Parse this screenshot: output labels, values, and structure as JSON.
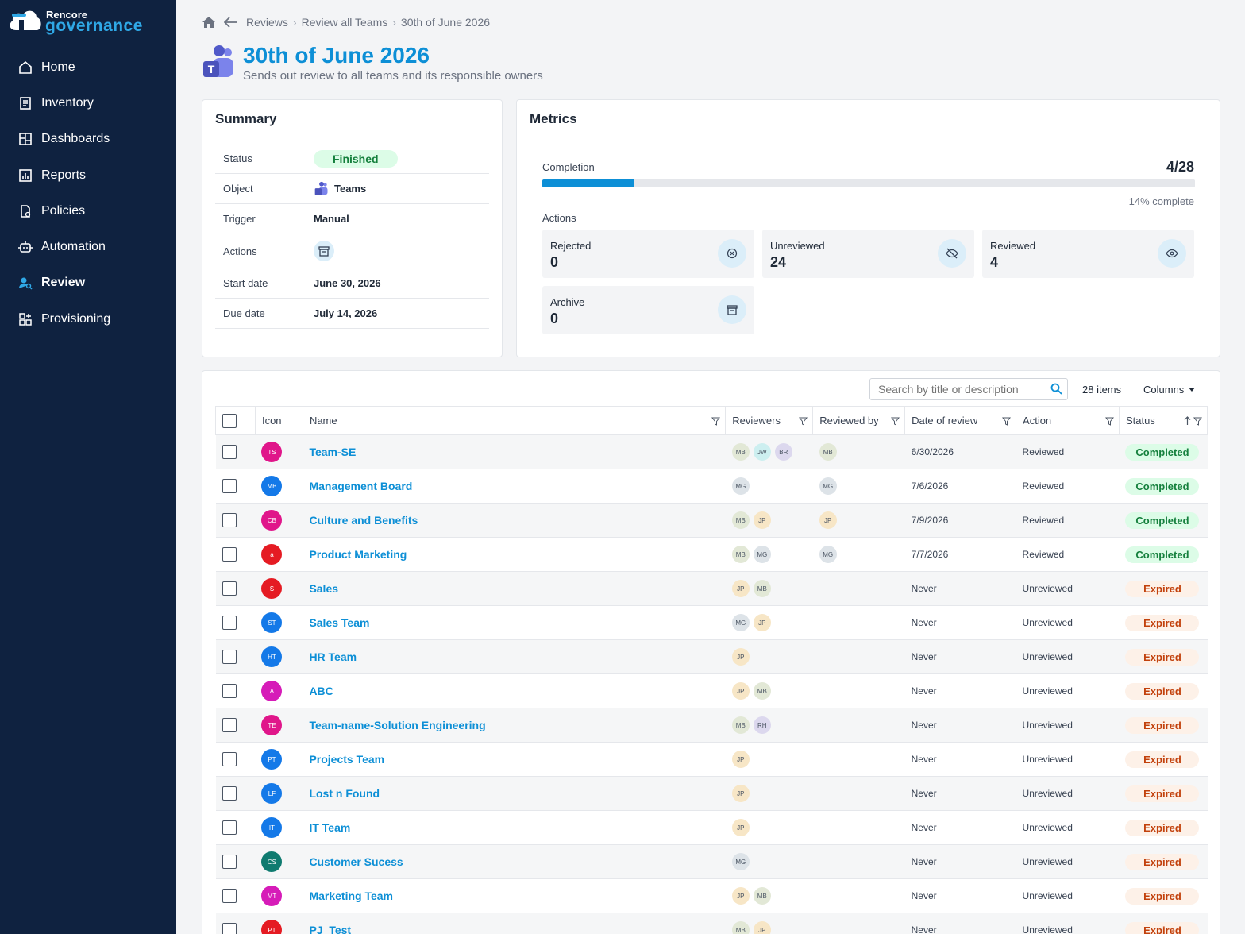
{
  "brand": {
    "small": "Rencore",
    "big": "governance"
  },
  "nav": [
    {
      "label": "Home",
      "icon": "home-icon"
    },
    {
      "label": "Inventory",
      "icon": "inventory-icon"
    },
    {
      "label": "Dashboards",
      "icon": "dashboards-icon"
    },
    {
      "label": "Reports",
      "icon": "reports-icon"
    },
    {
      "label": "Policies",
      "icon": "policies-icon"
    },
    {
      "label": "Automation",
      "icon": "automation-icon"
    },
    {
      "label": "Review",
      "icon": "review-icon",
      "active": true
    },
    {
      "label": "Provisioning",
      "icon": "provisioning-icon"
    }
  ],
  "breadcrumb": [
    "Reviews",
    "Review all Teams",
    "30th of June 2026"
  ],
  "header": {
    "title": "30th of June 2026",
    "subtitle": "Sends out review to all teams and its responsible owners"
  },
  "summary": {
    "title": "Summary",
    "status_label": "Status",
    "status_value": "Finished",
    "object_label": "Object",
    "object_value": "Teams",
    "trigger_label": "Trigger",
    "trigger_value": "Manual",
    "actions_label": "Actions",
    "start_label": "Start date",
    "start_value": "June 30, 2026",
    "due_label": "Due date",
    "due_value": "July 14, 2026"
  },
  "metrics": {
    "title": "Metrics",
    "completion_label": "Completion",
    "completion_value": "4/28",
    "completion_fraction": 0.14,
    "completion_pct": "14% complete",
    "actions_label": "Actions",
    "tiles": [
      {
        "label": "Rejected",
        "value": "0",
        "icon": "rejected-icon"
      },
      {
        "label": "Unreviewed",
        "value": "24",
        "icon": "eye-off-icon"
      },
      {
        "label": "Reviewed",
        "value": "4",
        "icon": "eye-icon"
      },
      {
        "label": "Archive",
        "value": "0",
        "icon": "archive-icon"
      }
    ]
  },
  "table": {
    "search_placeholder": "Search by title or description",
    "items_count": "28 items",
    "columns_label": "Columns",
    "headers": {
      "icon": "Icon",
      "name": "Name",
      "reviewers": "Reviewers",
      "reviewed_by": "Reviewed by",
      "date": "Date of review",
      "action": "Action",
      "status": "Status"
    },
    "rows": [
      {
        "initials": "TS",
        "color": "#e0168a",
        "name": "Team-SE",
        "reviewers": [
          "MB",
          "JW",
          "BR"
        ],
        "reviewed_by": [
          "MB"
        ],
        "date": "6/30/2026",
        "action": "Reviewed",
        "status": "Completed"
      },
      {
        "initials": "MB",
        "color": "#1479e8",
        "name": "Management Board",
        "reviewers": [
          "MG"
        ],
        "reviewed_by": [
          "MG"
        ],
        "date": "7/6/2026",
        "action": "Reviewed",
        "status": "Completed"
      },
      {
        "initials": "CB",
        "color": "#e0168a",
        "name": "Culture and Benefits",
        "reviewers": [
          "MB",
          "JP"
        ],
        "reviewed_by": [
          "JP"
        ],
        "date": "7/9/2026",
        "action": "Reviewed",
        "status": "Completed"
      },
      {
        "initials": "a",
        "color": "#e51b23",
        "name": "Product Marketing",
        "reviewers": [
          "MB",
          "MG"
        ],
        "reviewed_by": [
          "MG"
        ],
        "date": "7/7/2026",
        "action": "Reviewed",
        "status": "Completed"
      },
      {
        "initials": "S",
        "color": "#e51b23",
        "name": "Sales",
        "reviewers": [
          "JP",
          "MB"
        ],
        "reviewed_by": [],
        "date": "Never",
        "action": "Unreviewed",
        "status": "Expired"
      },
      {
        "initials": "ST",
        "color": "#1479e8",
        "name": "Sales Team",
        "reviewers": [
          "MG",
          "JP"
        ],
        "reviewed_by": [],
        "date": "Never",
        "action": "Unreviewed",
        "status": "Expired"
      },
      {
        "initials": "HT",
        "color": "#1479e8",
        "name": "HR Team",
        "reviewers": [
          "JP"
        ],
        "reviewed_by": [],
        "date": "Never",
        "action": "Unreviewed",
        "status": "Expired"
      },
      {
        "initials": "A",
        "color": "#d61cb8",
        "name": "ABC",
        "reviewers": [
          "JP",
          "MB"
        ],
        "reviewed_by": [],
        "date": "Never",
        "action": "Unreviewed",
        "status": "Expired"
      },
      {
        "initials": "TE",
        "color": "#e0168a",
        "name": "Team-name-Solution Engineering",
        "reviewers": [
          "MB",
          "RH"
        ],
        "reviewed_by": [],
        "date": "Never",
        "action": "Unreviewed",
        "status": "Expired"
      },
      {
        "initials": "PT",
        "color": "#1479e8",
        "name": "Projects Team",
        "reviewers": [
          "JP"
        ],
        "reviewed_by": [],
        "date": "Never",
        "action": "Unreviewed",
        "status": "Expired"
      },
      {
        "initials": "LF",
        "color": "#1479e8",
        "name": "Lost n Found",
        "reviewers": [
          "JP"
        ],
        "reviewed_by": [],
        "date": "Never",
        "action": "Unreviewed",
        "status": "Expired"
      },
      {
        "initials": "IT",
        "color": "#1479e8",
        "name": "IT Team",
        "reviewers": [
          "JP"
        ],
        "reviewed_by": [],
        "date": "Never",
        "action": "Unreviewed",
        "status": "Expired"
      },
      {
        "initials": "CS",
        "color": "#0f7b70",
        "name": "Customer Sucess",
        "reviewers": [
          "MG"
        ],
        "reviewed_by": [],
        "date": "Never",
        "action": "Unreviewed",
        "status": "Expired"
      },
      {
        "initials": "MT",
        "color": "#d61cb8",
        "name": "Marketing Team",
        "reviewers": [
          "JP",
          "MB"
        ],
        "reviewed_by": [],
        "date": "Never",
        "action": "Unreviewed",
        "status": "Expired"
      },
      {
        "initials": "PT",
        "color": "#e51b23",
        "name": "PJ_Test",
        "reviewers": [
          "MB",
          "JP"
        ],
        "reviewed_by": [],
        "date": "Never",
        "action": "Unreviewed",
        "status": "Expired"
      }
    ]
  }
}
